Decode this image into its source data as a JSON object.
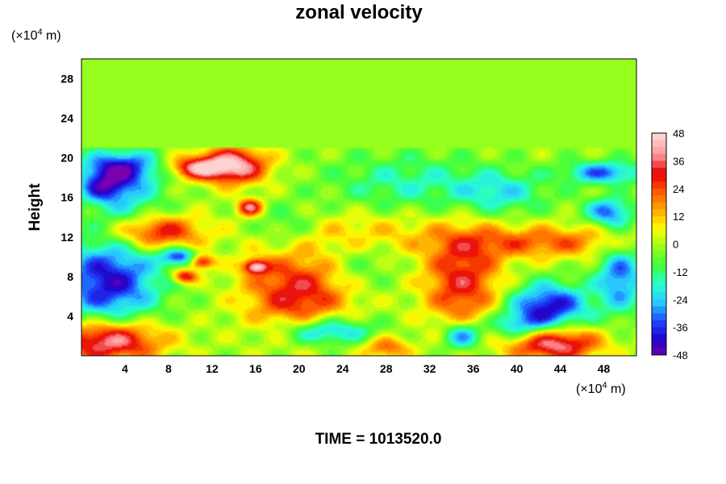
{
  "chart_data": {
    "type": "heatmap",
    "title": "zonal velocity",
    "ylabel": "Height",
    "x_unit_prefix": "(×10",
    "x_unit_exp": "4",
    "x_unit_suffix": " m)",
    "y_unit_prefix": "(×10",
    "y_unit_exp": "4",
    "y_unit_suffix": " m)",
    "xlim": [
      0,
      51
    ],
    "ylim": [
      0,
      30
    ],
    "x_ticks": [
      "4",
      "8",
      "12",
      "16",
      "20",
      "24",
      "28",
      "32",
      "36",
      "40",
      "44",
      "48"
    ],
    "y_ticks": [
      "4",
      "8",
      "12",
      "16",
      "20",
      "24",
      "28"
    ],
    "colorbar": {
      "min": -48,
      "max": 48,
      "ticks": [
        "48",
        "36",
        "24",
        "12",
        "0",
        "-12",
        "-24",
        "-36",
        "-48"
      ],
      "colormap": [
        "#7a00b0",
        "#1e00c8",
        "#1e46ff",
        "#28c8ff",
        "#28ffd2",
        "#3cff3c",
        "#96ff1e",
        "#ffff00",
        "#ffaa00",
        "#ff5a00",
        "#e60000",
        "#ff9696",
        "#ffd2d2"
      ]
    },
    "background_value": 0,
    "features": [
      {
        "x": 2.5,
        "y": 7.5,
        "value": -40,
        "sx": 3.2,
        "sy": 3.0
      },
      {
        "x": 3.5,
        "y": 19.0,
        "value": -38,
        "sx": 2.5,
        "sy": 1.2
      },
      {
        "x": 2.0,
        "y": 17.0,
        "value": -25,
        "sx": 1.5,
        "sy": 1.0
      },
      {
        "x": 14.0,
        "y": 19.2,
        "value": 46,
        "sx": 2.2,
        "sy": 1.3
      },
      {
        "x": 10.5,
        "y": 19.0,
        "value": 34,
        "sx": 1.8,
        "sy": 0.8
      },
      {
        "x": 15.5,
        "y": 15.0,
        "value": 38,
        "sx": 0.8,
        "sy": 0.6
      },
      {
        "x": 7.0,
        "y": 12.5,
        "value": 34,
        "sx": 3.0,
        "sy": 1.2
      },
      {
        "x": 2.5,
        "y": 1.5,
        "value": 44,
        "sx": 3.5,
        "sy": 1.5
      },
      {
        "x": 20.0,
        "y": 6.5,
        "value": 34,
        "sx": 3.5,
        "sy": 3.0
      },
      {
        "x": 35.0,
        "y": 7.5,
        "value": 32,
        "sx": 2.5,
        "sy": 3.5
      },
      {
        "x": 43.5,
        "y": 1.2,
        "value": 42,
        "sx": 3.0,
        "sy": 1.2
      },
      {
        "x": 43.0,
        "y": 5.0,
        "value": -40,
        "sx": 2.5,
        "sy": 1.6
      },
      {
        "x": 49.5,
        "y": 8.0,
        "value": -30,
        "sx": 1.5,
        "sy": 2.5
      },
      {
        "x": 22.5,
        "y": 2.5,
        "value": -30,
        "sx": 3.0,
        "sy": 1.0
      },
      {
        "x": 35.0,
        "y": 2.0,
        "value": -32,
        "sx": 1.3,
        "sy": 1.0
      },
      {
        "x": 42.5,
        "y": 11.5,
        "value": 24,
        "sx": 6.0,
        "sy": 1.2
      },
      {
        "x": 26.0,
        "y": 12.5,
        "value": 12,
        "sx": 5.0,
        "sy": 1.5
      },
      {
        "x": 11.0,
        "y": 9.5,
        "value": 38,
        "sx": 0.8,
        "sy": 0.5
      },
      {
        "x": 16.0,
        "y": 9.0,
        "value": 40,
        "sx": 0.8,
        "sy": 0.5
      },
      {
        "x": 9.0,
        "y": 10.0,
        "value": -34,
        "sx": 1.2,
        "sy": 0.6
      },
      {
        "x": 9.5,
        "y": 8.0,
        "value": 36,
        "sx": 0.8,
        "sy": 0.5
      },
      {
        "x": 48.5,
        "y": 14.5,
        "value": -30,
        "sx": 1.5,
        "sy": 1.0
      },
      {
        "x": 48.0,
        "y": 18.5,
        "value": -30,
        "sx": 2.5,
        "sy": 0.8
      },
      {
        "x": 30.0,
        "y": 17.5,
        "value": -14,
        "sx": 5.0,
        "sy": 2.0
      },
      {
        "x": 38.5,
        "y": 16.5,
        "value": -18,
        "sx": 3.0,
        "sy": 1.5
      },
      {
        "x": 25.0,
        "y": 9.0,
        "value": -10,
        "sx": 2.5,
        "sy": 2.0
      },
      {
        "x": 4.0,
        "y": 16.0,
        "value": -18,
        "sx": 2.5,
        "sy": 2.0
      },
      {
        "x": 28.0,
        "y": 0.8,
        "value": 24,
        "sx": 1.5,
        "sy": 0.8
      },
      {
        "x": 40.0,
        "y": 3.0,
        "value": -22,
        "sx": 2.0,
        "sy": 1.0
      },
      {
        "x": 19.0,
        "y": 13.0,
        "value": -12,
        "sx": 2.0,
        "sy": 1.5
      }
    ],
    "flat_region_above": 21,
    "grid": false
  },
  "footer": {
    "time_label": "TIME = 1013520.0"
  }
}
